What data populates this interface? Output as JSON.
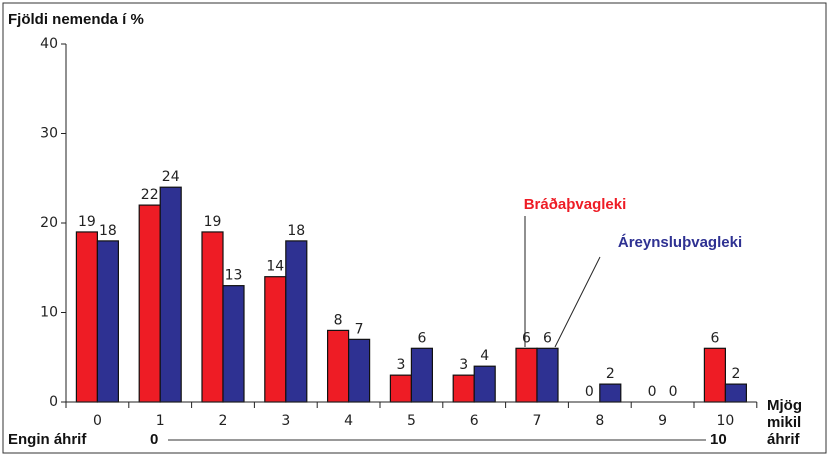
{
  "chart_data": {
    "type": "bar",
    "title": "Fjöldi nemenda í %",
    "categories": [
      "0",
      "1",
      "2",
      "3",
      "4",
      "5",
      "6",
      "7",
      "8",
      "9",
      "10"
    ],
    "series": [
      {
        "name": "Bráðaþvagleki",
        "color": "#ee1c25",
        "values": [
          19,
          22,
          19,
          14,
          8,
          3,
          3,
          6,
          0,
          0,
          6
        ]
      },
      {
        "name": "Áreynsluþvagleki",
        "color": "#2e3192",
        "values": [
          18,
          24,
          13,
          18,
          7,
          6,
          4,
          6,
          2,
          0,
          2
        ]
      }
    ],
    "ylim": [
      0,
      40
    ],
    "yticks": [
      0,
      10,
      20,
      30,
      40
    ],
    "scale": {
      "low": "Engin áhrif",
      "low_end": "0",
      "high_end": "10",
      "high": [
        "Mjög",
        "mikil",
        "áhrif"
      ]
    }
  }
}
